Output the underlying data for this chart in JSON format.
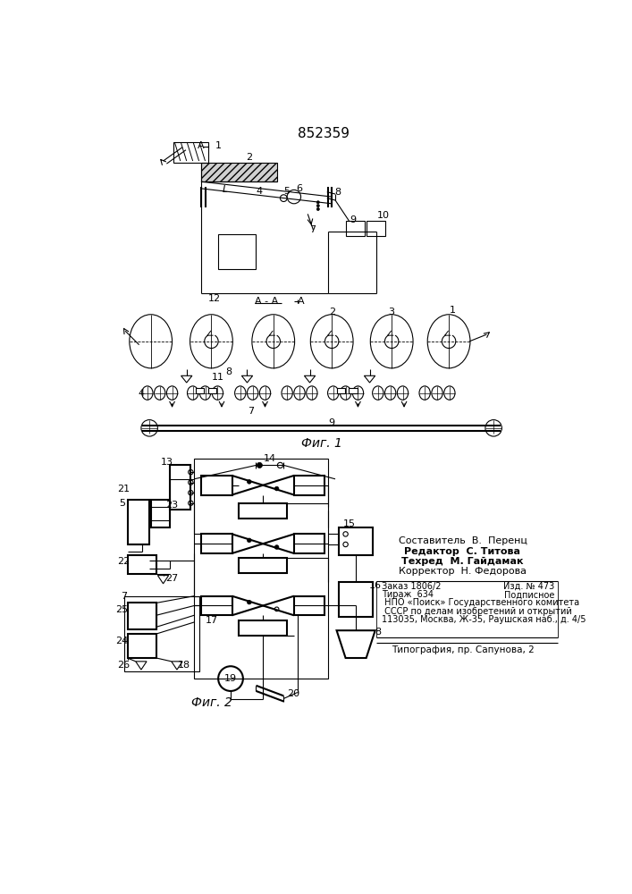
{
  "patent_number": "852359",
  "fig1_label": "Фиг. 1",
  "fig2_label": "Фиг. 2",
  "background": "#ffffff",
  "line_color": "#000000",
  "credit_lines": [
    "Составитель  В.  Перенц",
    "Редактор  С. Титова",
    "Техред  М. Гайдамак",
    "Корректор  Н. Федорова"
  ],
  "info_line1": "Заказ 1806/2",
  "info_line1r": "Изд. № 473",
  "info_line2": "Тираж  634",
  "info_line2r": "Подписное",
  "info_line3": " НПО «Поиск» Государственного комитета",
  "info_line4": " СССР по делам изобретений и открытий",
  "info_line5": "113035, Москва, Ж-35, Раушская наб., д. 4/5",
  "typography_line": "Типография, пр. Сапунова, 2"
}
